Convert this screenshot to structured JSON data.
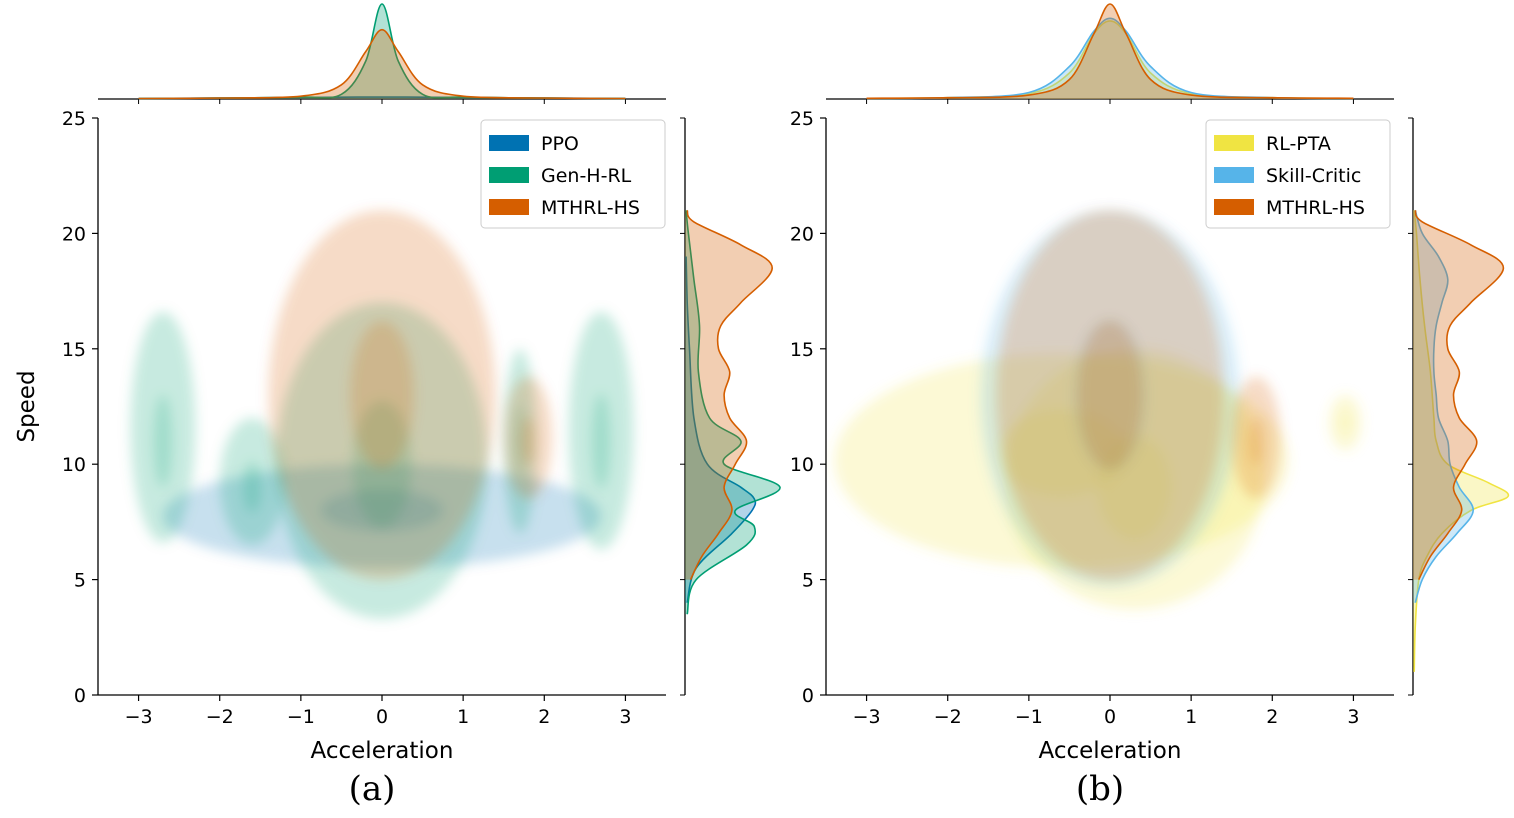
{
  "chart_data": [
    {
      "type": "kde-joint",
      "caption": "(a)",
      "xlabel": "Acceleration",
      "ylabel": "Speed",
      "xlim": [
        -3.5,
        3.5
      ],
      "ylim": [
        0,
        25
      ],
      "xticks": [
        -3,
        -2,
        -1,
        0,
        1,
        2,
        3
      ],
      "xtick_labels": [
        "−3",
        "−2",
        "−1",
        "0",
        "1",
        "2",
        "3"
      ],
      "yticks": [
        0,
        5,
        10,
        15,
        20,
        25
      ],
      "ytick_labels": [
        "0",
        "5",
        "10",
        "15",
        "20",
        "25"
      ],
      "legend_position": "top-right",
      "grid": false,
      "series": [
        {
          "name": "PPO",
          "color": "#0072B2",
          "regions": [
            {
              "x_center": 0.0,
              "y_center": 8.0,
              "x_half_width": 2.7,
              "y_min": 5.5,
              "y_max": 10.0
            }
          ],
          "marginal_x": {
            "x": [
              -3.0,
              -2.0,
              -1.0,
              -0.3,
              0.0,
              0.3,
              1.0,
              2.0,
              3.0
            ],
            "density": [
              0.005,
              0.01,
              0.015,
              0.02,
              0.02,
              0.02,
              0.015,
              0.01,
              0.005
            ]
          },
          "marginal_y": {
            "y": [
              4.0,
              5.5,
              7.0,
              8.0,
              8.5,
              9.0,
              10.0,
              12.0,
              15.0,
              17.0,
              19.0
            ],
            "density": [
              0.02,
              0.1,
              0.42,
              0.6,
              0.62,
              0.5,
              0.2,
              0.08,
              0.04,
              0.02,
              0.01
            ]
          }
        },
        {
          "name": "Gen-H-RL",
          "color": "#009E73",
          "regions": [
            {
              "x_center": 0.0,
              "y_center": 10.0,
              "x_half_width": 1.3,
              "y_min": 3.3,
              "y_max": 17.0
            },
            {
              "x_center": -2.7,
              "y_center": 11.0,
              "x_half_width": 0.4,
              "y_min": 6.6,
              "y_max": 16.6
            },
            {
              "x_center": 2.7,
              "y_center": 11.0,
              "x_half_width": 0.4,
              "y_min": 6.3,
              "y_max": 16.6
            },
            {
              "x_center": -1.6,
              "y_center": 9.0,
              "x_half_width": 0.4,
              "y_min": 6.5,
              "y_max": 12.0
            },
            {
              "x_center": 1.7,
              "y_center": 11.0,
              "x_half_width": 0.2,
              "y_min": 7.0,
              "y_max": 15.0
            }
          ],
          "marginal_x": {
            "x": [
              -3.0,
              -2.0,
              -1.0,
              -0.5,
              -0.2,
              0.0,
              0.2,
              0.5,
              1.0,
              2.0,
              3.0
            ],
            "density": [
              0.005,
              0.01,
              0.02,
              0.05,
              0.4,
              1.0,
              0.4,
              0.05,
              0.02,
              0.01,
              0.005
            ]
          },
          "marginal_y": {
            "y": [
              3.5,
              5.0,
              6.5,
              7.3,
              8.0,
              9.0,
              10.0,
              11.0,
              12.0,
              14.0,
              16.0,
              18.0,
              20.0,
              21.0
            ],
            "density": [
              0.02,
              0.1,
              0.55,
              0.62,
              0.45,
              0.85,
              0.35,
              0.5,
              0.22,
              0.12,
              0.13,
              0.08,
              0.03,
              0.01
            ]
          }
        },
        {
          "name": "MTHRL-HS",
          "color": "#D55E00",
          "regions": [
            {
              "x_center": 0.0,
              "y_center": 13.0,
              "x_half_width": 1.4,
              "y_min": 5.0,
              "y_max": 21.0
            },
            {
              "x_center": 1.8,
              "y_center": 11.0,
              "x_half_width": 0.3,
              "y_min": 8.5,
              "y_max": 13.8
            }
          ],
          "marginal_x": {
            "x": [
              -3.0,
              -2.0,
              -1.0,
              -0.5,
              -0.2,
              0.0,
              0.2,
              0.5,
              1.0,
              2.0,
              3.0
            ],
            "density": [
              0.005,
              0.01,
              0.03,
              0.15,
              0.5,
              0.73,
              0.5,
              0.15,
              0.03,
              0.01,
              0.005
            ]
          },
          "marginal_y": {
            "y": [
              5.0,
              6.0,
              7.0,
              8.0,
              9.0,
              10.0,
              11.0,
              12.0,
              13.0,
              14.0,
              15.0,
              16.0,
              17.0,
              18.5,
              19.5,
              20.5,
              21.0
            ],
            "density": [
              0.05,
              0.15,
              0.3,
              0.42,
              0.35,
              0.45,
              0.55,
              0.4,
              0.35,
              0.4,
              0.3,
              0.32,
              0.5,
              0.78,
              0.5,
              0.08,
              0.02
            ]
          }
        }
      ]
    },
    {
      "type": "kde-joint",
      "caption": "(b)",
      "xlabel": "Acceleration",
      "ylabel": "",
      "xlim": [
        -3.5,
        3.5
      ],
      "ylim": [
        0,
        25
      ],
      "xticks": [
        -3,
        -2,
        -1,
        0,
        1,
        2,
        3
      ],
      "xtick_labels": [
        "−3",
        "−2",
        "−1",
        "0",
        "1",
        "2",
        "3"
      ],
      "yticks": [
        0,
        5,
        10,
        15,
        20,
        25
      ],
      "ytick_labels": [
        "0",
        "5",
        "10",
        "15",
        "20",
        "25"
      ],
      "legend_position": "top-right",
      "grid": false,
      "series": [
        {
          "name": "RL-PTA",
          "color": "#F0E442",
          "regions": [
            {
              "x_center": -0.6,
              "y_center": 10.5,
              "x_half_width": 2.8,
              "y_min": 5.5,
              "y_max": 14.8
            },
            {
              "x_center": 0.3,
              "y_center": 9.0,
              "x_half_width": 1.6,
              "y_min": 3.7,
              "y_max": 15.0
            },
            {
              "x_center": 2.9,
              "y_center": 11.8,
              "x_half_width": 0.2,
              "y_min": 10.6,
              "y_max": 13.0
            }
          ],
          "marginal_x": {
            "x": [
              -3.0,
              -2.0,
              -1.0,
              -0.5,
              -0.2,
              0.0,
              0.2,
              0.5,
              1.0,
              2.0,
              3.0
            ],
            "density": [
              0.005,
              0.01,
              0.04,
              0.2,
              0.5,
              0.6,
              0.5,
              0.2,
              0.04,
              0.01,
              0.005
            ]
          },
          "marginal_y": {
            "y": [
              1.0,
              3.0,
              5.0,
              6.0,
              7.0,
              8.0,
              8.6,
              9.2,
              10.0,
              11.0,
              12.0,
              14.0,
              16.0,
              18.0,
              20.0,
              21.0
            ],
            "density": [
              0.01,
              0.02,
              0.05,
              0.12,
              0.25,
              0.5,
              0.82,
              0.65,
              0.3,
              0.2,
              0.18,
              0.15,
              0.1,
              0.06,
              0.03,
              0.01
            ]
          }
        },
        {
          "name": "Skill-Critic",
          "color": "#56B4E9",
          "regions": [
            {
              "x_center": 0.0,
              "y_center": 13.0,
              "x_half_width": 1.6,
              "y_min": 4.7,
              "y_max": 21.0
            }
          ],
          "marginal_x": {
            "x": [
              -3.0,
              -2.0,
              -1.0,
              -0.5,
              -0.2,
              0.0,
              0.2,
              0.5,
              1.0,
              2.0,
              3.0
            ],
            "density": [
              0.005,
              0.01,
              0.05,
              0.25,
              0.52,
              0.62,
              0.52,
              0.25,
              0.05,
              0.01,
              0.005
            ]
          },
          "marginal_y": {
            "y": [
              4.0,
              5.0,
              6.0,
              7.0,
              8.0,
              9.0,
              10.0,
              11.0,
              12.0,
              13.0,
              14.0,
              15.0,
              16.0,
              17.0,
              18.0,
              19.0,
              20.0,
              21.0
            ],
            "density": [
              0.02,
              0.08,
              0.2,
              0.38,
              0.52,
              0.4,
              0.32,
              0.3,
              0.22,
              0.2,
              0.18,
              0.18,
              0.2,
              0.25,
              0.3,
              0.22,
              0.08,
              0.02
            ]
          }
        },
        {
          "name": "MTHRL-HS",
          "color": "#D55E00",
          "regions": [
            {
              "x_center": 0.0,
              "y_center": 13.0,
              "x_half_width": 1.4,
              "y_min": 5.0,
              "y_max": 21.0
            },
            {
              "x_center": 1.8,
              "y_center": 11.0,
              "x_half_width": 0.3,
              "y_min": 8.5,
              "y_max": 13.8
            }
          ],
          "marginal_x": {
            "x": [
              -3.0,
              -2.0,
              -1.0,
              -0.5,
              -0.2,
              0.0,
              0.2,
              0.5,
              1.0,
              2.0,
              3.0
            ],
            "density": [
              0.005,
              0.01,
              0.03,
              0.15,
              0.5,
              0.73,
              0.5,
              0.15,
              0.03,
              0.01,
              0.005
            ]
          },
          "marginal_y": {
            "y": [
              5.0,
              6.0,
              7.0,
              8.0,
              9.0,
              10.0,
              11.0,
              12.0,
              13.0,
              14.0,
              15.0,
              16.0,
              17.0,
              18.5,
              19.5,
              20.5,
              21.0
            ],
            "density": [
              0.05,
              0.15,
              0.3,
              0.42,
              0.35,
              0.45,
              0.55,
              0.4,
              0.35,
              0.4,
              0.3,
              0.32,
              0.5,
              0.78,
              0.5,
              0.08,
              0.02
            ]
          }
        }
      ]
    }
  ]
}
